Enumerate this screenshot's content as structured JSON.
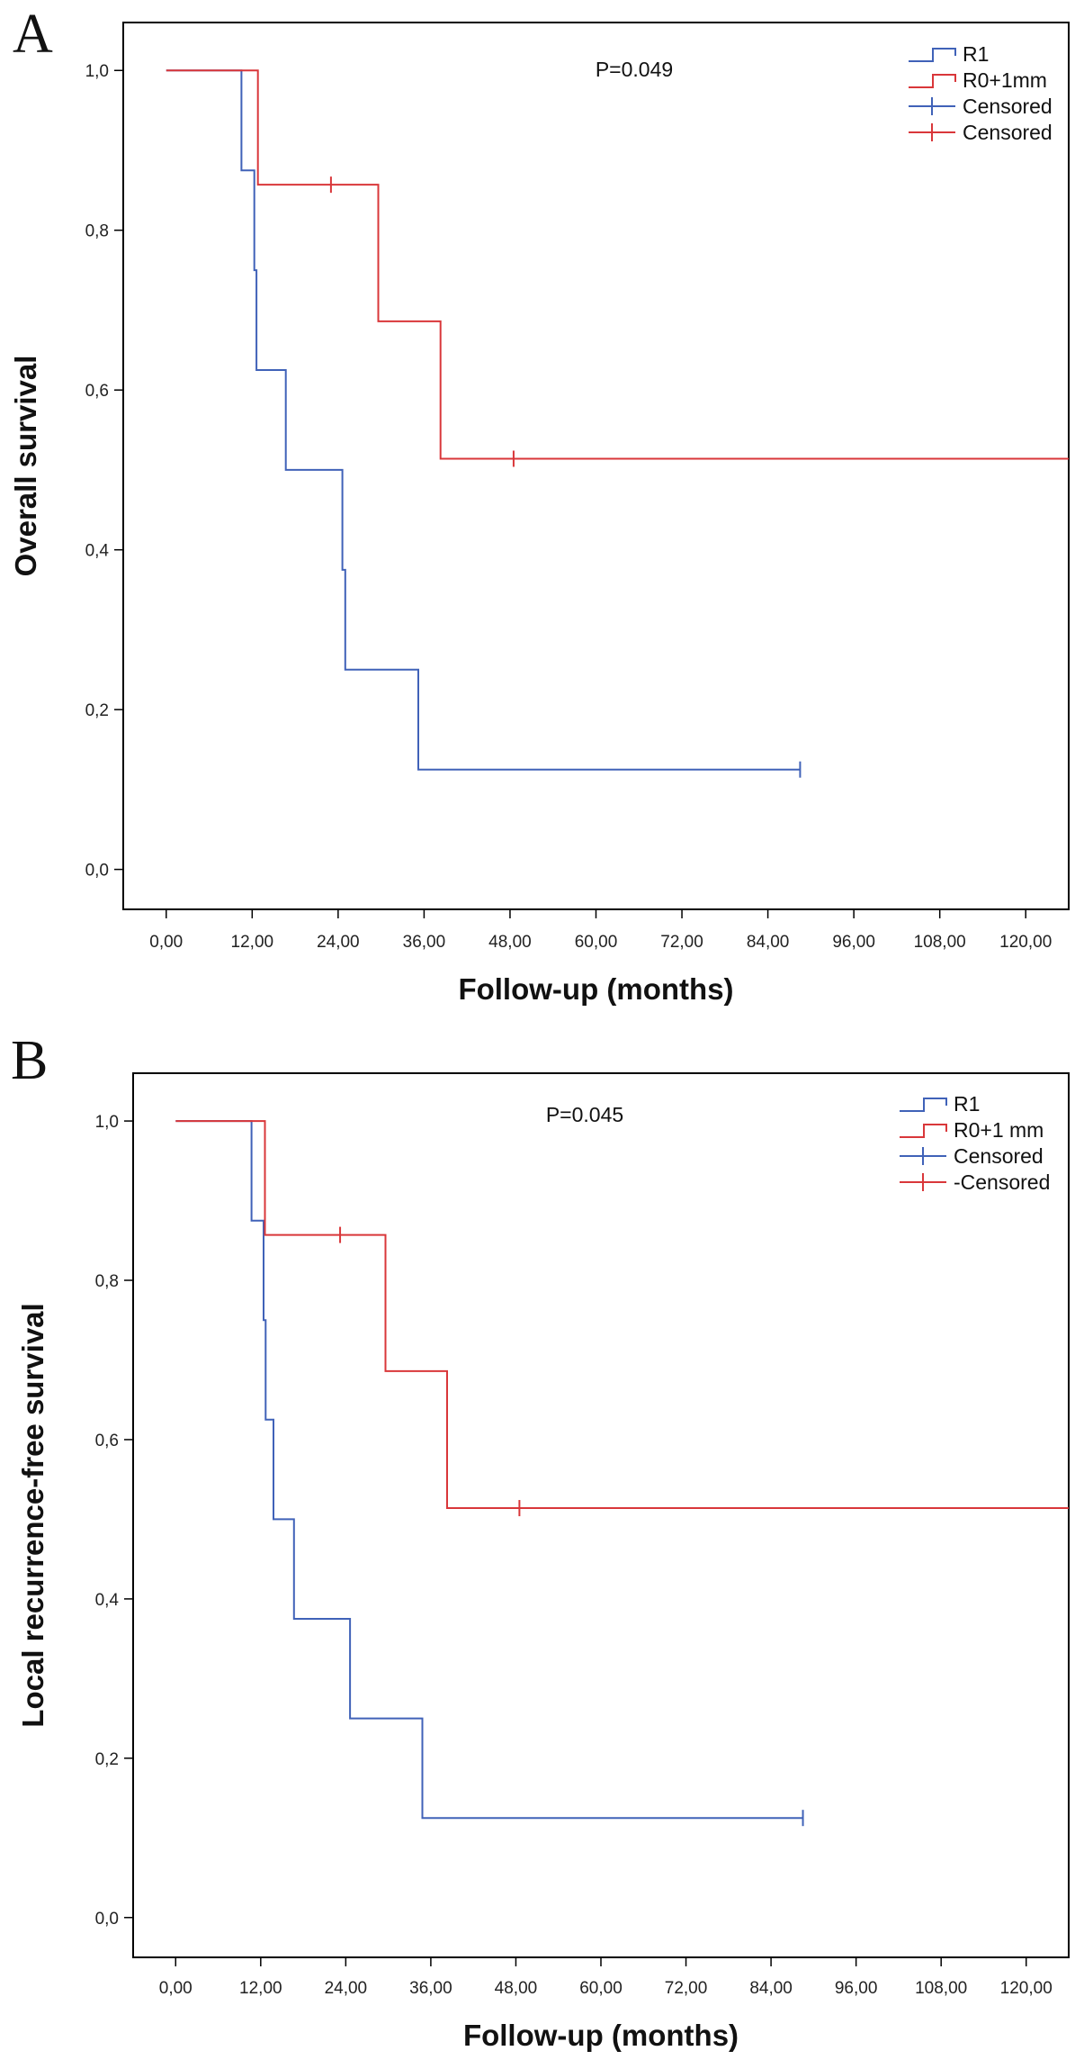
{
  "chart_data": [
    {
      "panel_label": "A",
      "type": "line",
      "step": true,
      "annotation": "P=0.049",
      "xlabel": "Follow-up (months)",
      "ylabel": "Overall survival",
      "xlim": [
        -6,
        126
      ],
      "ylim": [
        -0.05,
        1.06
      ],
      "x_ticks": [
        0,
        12,
        24,
        36,
        48,
        60,
        72,
        84,
        96,
        108,
        120
      ],
      "x_tick_labels": [
        "0,00",
        "12,00",
        "24,00",
        "36,00",
        "48,00",
        "60,00",
        "72,00",
        "84,00",
        "96,00",
        "108,00",
        "120,00"
      ],
      "y_ticks": [
        0,
        0.2,
        0.4,
        0.6,
        0.8,
        1.0
      ],
      "y_tick_labels": [
        "0,0",
        "0,2",
        "0,4",
        "0,6",
        "0,8",
        "1,0"
      ],
      "grid": false,
      "legend_position": "top-right",
      "legend": [
        "R1",
        "R0+1mm",
        "Censored",
        "Censored"
      ],
      "series": [
        {
          "name": "R1",
          "color": "#4062b8",
          "steps": [
            [
              0,
              1.0
            ],
            [
              10.5,
              1.0
            ],
            [
              10.5,
              0.875
            ],
            [
              12.3,
              0.875
            ],
            [
              12.3,
              0.75
            ],
            [
              12.6,
              0.75
            ],
            [
              12.6,
              0.625
            ],
            [
              16.7,
              0.625
            ],
            [
              16.7,
              0.5
            ],
            [
              24.6,
              0.5
            ],
            [
              24.6,
              0.375
            ],
            [
              25.0,
              0.375
            ],
            [
              25.0,
              0.25
            ],
            [
              35.2,
              0.25
            ],
            [
              35.2,
              0.125
            ],
            [
              88.5,
              0.125
            ]
          ],
          "censored": [
            [
              88.5,
              0.125
            ]
          ]
        },
        {
          "name": "R0+1mm",
          "color": "#d9373a",
          "steps": [
            [
              0,
              1.0
            ],
            [
              12.8,
              1.0
            ],
            [
              12.8,
              0.857
            ],
            [
              29.6,
              0.857
            ],
            [
              29.6,
              0.686
            ],
            [
              38.3,
              0.686
            ],
            [
              38.3,
              0.514
            ],
            [
              126,
              0.514
            ]
          ],
          "censored": [
            [
              23.0,
              0.857
            ],
            [
              48.5,
              0.514
            ]
          ]
        }
      ]
    },
    {
      "panel_label": "B",
      "type": "line",
      "step": true,
      "annotation": "P=0.045",
      "xlabel": "Follow-up (months)",
      "ylabel": "Local recurrence-free survival",
      "xlim": [
        -6,
        126
      ],
      "ylim": [
        -0.05,
        1.06
      ],
      "x_ticks": [
        0,
        12,
        24,
        36,
        48,
        60,
        72,
        84,
        96,
        108,
        120
      ],
      "x_tick_labels": [
        "0,00",
        "12,00",
        "24,00",
        "36,00",
        "48,00",
        "60,00",
        "72,00",
        "84,00",
        "96,00",
        "108,00",
        "120,00"
      ],
      "y_ticks": [
        0,
        0.2,
        0.4,
        0.6,
        0.8,
        1.0
      ],
      "y_tick_labels": [
        "0,0",
        "0,2",
        "0,4",
        "0,6",
        "0,8",
        "1,0"
      ],
      "grid": false,
      "legend_position": "top-right",
      "legend": [
        "R1",
        "R0+1 mm",
        "Censored",
        "-Censored"
      ],
      "series": [
        {
          "name": "R1",
          "color": "#4062b8",
          "steps": [
            [
              0,
              1.0
            ],
            [
              10.7,
              1.0
            ],
            [
              10.7,
              0.875
            ],
            [
              12.4,
              0.875
            ],
            [
              12.4,
              0.75
            ],
            [
              12.7,
              0.75
            ],
            [
              12.7,
              0.625
            ],
            [
              13.8,
              0.625
            ],
            [
              13.8,
              0.5
            ],
            [
              16.7,
              0.5
            ],
            [
              16.7,
              0.375
            ],
            [
              24.6,
              0.375
            ],
            [
              24.6,
              0.25
            ],
            [
              34.8,
              0.25
            ],
            [
              34.8,
              0.125
            ],
            [
              88.5,
              0.125
            ]
          ],
          "censored": [
            [
              88.5,
              0.125
            ]
          ]
        },
        {
          "name": "R0+1 mm",
          "color": "#d9373a",
          "steps": [
            [
              0,
              1.0
            ],
            [
              12.6,
              1.0
            ],
            [
              12.6,
              0.857
            ],
            [
              29.6,
              0.857
            ],
            [
              29.6,
              0.686
            ],
            [
              38.3,
              0.686
            ],
            [
              38.3,
              0.514
            ],
            [
              126,
              0.514
            ]
          ],
          "censored": [
            [
              23.2,
              0.857
            ],
            [
              48.5,
              0.514
            ]
          ]
        }
      ]
    }
  ]
}
